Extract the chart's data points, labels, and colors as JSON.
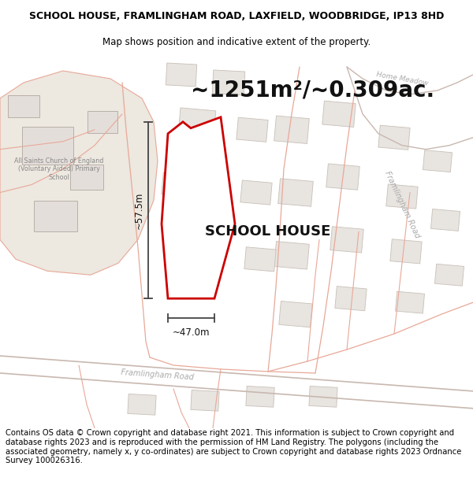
{
  "title_line1": "SCHOOL HOUSE, FRAMLINGHAM ROAD, LAXFIELD, WOODBRIDGE, IP13 8HD",
  "title_line2": "Map shows position and indicative extent of the property.",
  "area_text": "~1251m²/~0.309ac.",
  "label_text": "SCHOOL HOUSE",
  "width_label": "~47.0m",
  "height_label": "~57.5m",
  "footer_text": "Contains OS data © Crown copyright and database right 2021. This information is subject to Crown copyright and database rights 2023 and is reproduced with the permission of HM Land Registry. The polygons (including the associated geometry, namely x, y co-ordinates) are subject to Crown copyright and database rights 2023 Ordnance Survey 100026316.",
  "bg_color": "#ffffff",
  "map_bg": "#ffffff",
  "church_area_color": "#ede8e0",
  "road_line_color": "#e8a898",
  "road_line_color2": "#c8b8b0",
  "building_fc": "#e8e4e0",
  "building_ec": "#c8c0b8",
  "plot_fill": "#ffffff",
  "plot_edge": "#cc0000",
  "plot_edge_width": 2.0,
  "dim_color": "#444444",
  "title_fontsize": 9,
  "subtitle_fontsize": 8.5,
  "area_fontsize": 20,
  "label_fontsize": 13,
  "footer_fontsize": 7.2,
  "road_text_color": "#aaaaaa",
  "church_text_color": "#888888"
}
